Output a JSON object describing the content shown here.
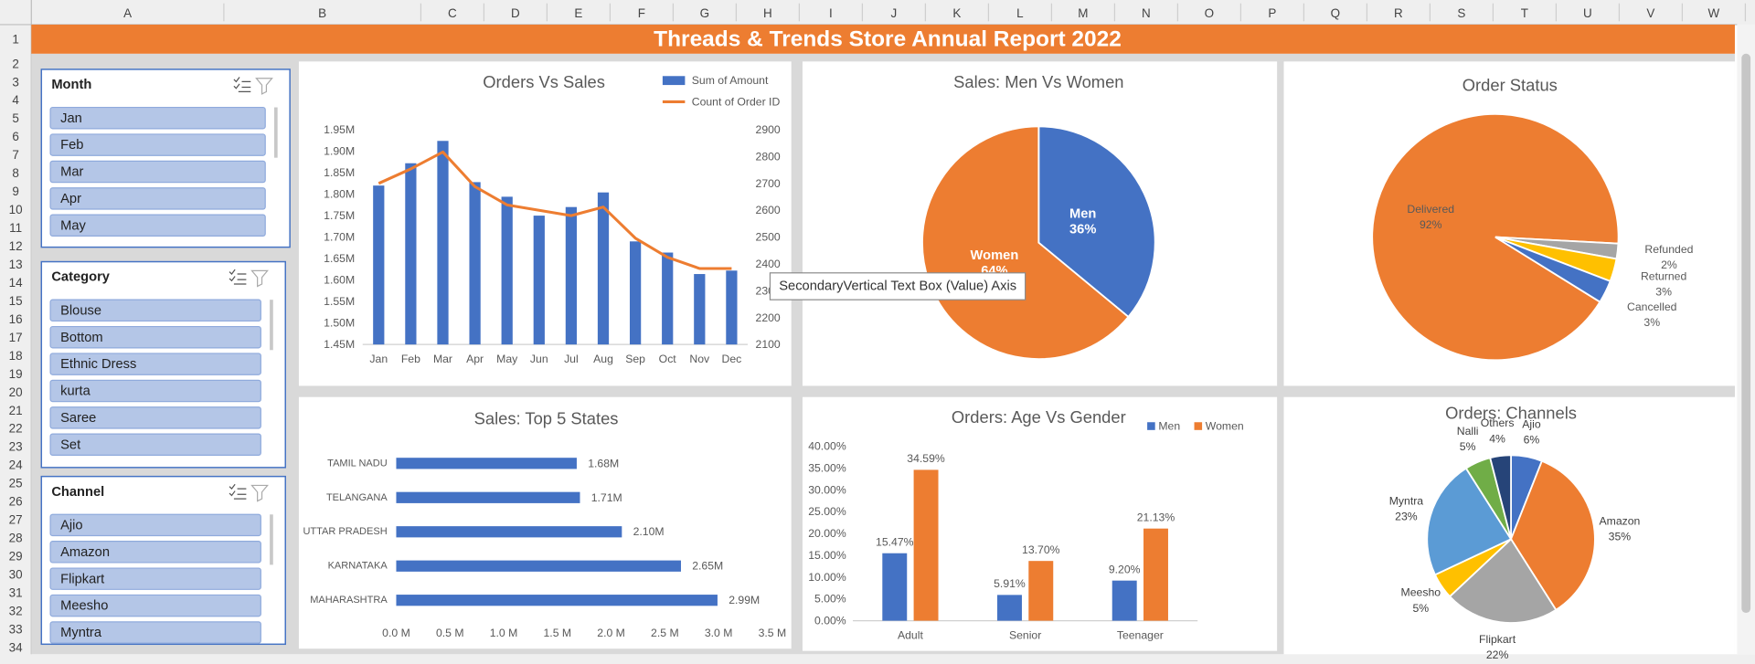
{
  "sheet": {
    "columns": [
      "A",
      "B",
      "C",
      "D",
      "E",
      "F",
      "G",
      "H",
      "I",
      "J",
      "K",
      "L",
      "M",
      "N",
      "O",
      "P",
      "Q",
      "R",
      "S",
      "T",
      "U",
      "V",
      "W"
    ],
    "rows": [
      1,
      2,
      3,
      4,
      5,
      6,
      7,
      8,
      9,
      10,
      11,
      12,
      13,
      14,
      15,
      16,
      17,
      18,
      19,
      20,
      21,
      22,
      23,
      24,
      25,
      26,
      27,
      28,
      29,
      30,
      31,
      32,
      33,
      34
    ]
  },
  "dashboard_title": "Threads & Trends Store Annual Report 2022",
  "slicers": [
    {
      "title": "Month",
      "items": [
        "Jan",
        "Feb",
        "Mar",
        "Apr",
        "May"
      ]
    },
    {
      "title": "Category",
      "items": [
        "Blouse",
        "Bottom",
        "Ethnic Dress",
        "kurta",
        "Saree",
        "Set"
      ]
    },
    {
      "title": "Channel",
      "items": [
        "Ajio",
        "Amazon",
        "Flipkart",
        "Meesho",
        "Myntra"
      ]
    }
  ],
  "tooltip": "SecondaryVertical Text Box (Value) Axis",
  "chart_data": [
    {
      "type": "combo",
      "title": "Orders Vs Sales",
      "categories": [
        "Jan",
        "Feb",
        "Mar",
        "Apr",
        "May",
        "Jun",
        "Jul",
        "Aug",
        "Sep",
        "Oct",
        "Nov",
        "Dec"
      ],
      "series": [
        {
          "name": "Sum of Amount",
          "type": "bar",
          "color": "#4472c4",
          "values": [
            1820000,
            1872000,
            1924000,
            1828000,
            1794000,
            1750000,
            1770000,
            1804000,
            1690000,
            1664000,
            1614000,
            1622000
          ]
        },
        {
          "name": "Count of Order ID",
          "type": "line",
          "axis": "y2",
          "color": "#ed7d31",
          "values": [
            2700,
            2754,
            2817,
            2688,
            2620,
            2600,
            2580,
            2612,
            2496,
            2425,
            2383,
            2383
          ]
        }
      ],
      "ylim": [
        1450000,
        1950000
      ],
      "yticks": [
        {
          "value": 1450000,
          "label": "1.45M"
        },
        {
          "value": 1500000,
          "label": "1.50M"
        },
        {
          "value": 1550000,
          "label": "1.55M"
        },
        {
          "value": 1600000,
          "label": "1.60M"
        },
        {
          "value": 1650000,
          "label": "1.65M"
        },
        {
          "value": 1700000,
          "label": "1.70M"
        },
        {
          "value": 1750000,
          "label": "1.75M"
        },
        {
          "value": 1800000,
          "label": "1.80M"
        },
        {
          "value": 1850000,
          "label": "1.85M"
        },
        {
          "value": 1900000,
          "label": "1.90M"
        },
        {
          "value": 1950000,
          "label": "1.95M"
        }
      ],
      "y2lim": [
        2100,
        2900
      ],
      "y2ticks": [
        2100,
        2200,
        2300,
        2400,
        2500,
        2600,
        2700,
        2800,
        2900
      ],
      "legend": "top-right"
    },
    {
      "type": "pie",
      "title": "Sales: Men Vs Women",
      "categories": [
        "Men",
        "Women"
      ],
      "values": [
        36,
        64
      ],
      "value_labels": [
        "36%",
        "64%"
      ],
      "colors": [
        "#4472c4",
        "#ed7d31"
      ]
    },
    {
      "type": "pie",
      "title": "Order Status",
      "categories": [
        "Delivered",
        "Refunded",
        "Returned",
        "Cancelled"
      ],
      "values": [
        92,
        2,
        3,
        3
      ],
      "value_labels": [
        "92%",
        "2%",
        "3%",
        "3%"
      ],
      "colors": [
        "#ed7d31",
        "#a5a5a5",
        "#ffc000",
        "#4472c4"
      ]
    },
    {
      "type": "barh",
      "title": "Sales: Top 5 States",
      "categories": [
        "TAMIL NADU",
        "TELANGANA",
        "UTTAR PRADESH",
        "KARNATAKA",
        "MAHARASHTRA"
      ],
      "values": [
        1680000,
        1710000,
        2100000,
        2650000,
        2990000
      ],
      "value_labels": [
        "1.68M",
        "1.71M",
        "2.10M",
        "2.65M",
        "2.99M"
      ],
      "color": "#4472c4",
      "xlim": [
        0,
        3500000
      ],
      "xticks": [
        {
          "value": 0,
          "label": "0.0 M"
        },
        {
          "value": 500000,
          "label": "0.5 M"
        },
        {
          "value": 1000000,
          "label": "1.0 M"
        },
        {
          "value": 1500000,
          "label": "1.5 M"
        },
        {
          "value": 2000000,
          "label": "2.0 M"
        },
        {
          "value": 2500000,
          "label": "2.5 M"
        },
        {
          "value": 3000000,
          "label": "3.0 M"
        },
        {
          "value": 3500000,
          "label": "3.5 M"
        }
      ]
    },
    {
      "type": "bar",
      "title": "Orders: Age Vs Gender",
      "categories": [
        "Adult",
        "Senior",
        "Teenager"
      ],
      "series": [
        {
          "name": "Men",
          "color": "#4472c4",
          "values": [
            15.47,
            5.91,
            9.2
          ],
          "value_labels": [
            "15.47%",
            "5.91%",
            "9.20%"
          ]
        },
        {
          "name": "Women",
          "color": "#ed7d31",
          "values": [
            34.59,
            13.7,
            21.13
          ],
          "value_labels": [
            "34.59%",
            "13.70%",
            "21.13%"
          ]
        }
      ],
      "ylim": [
        0,
        40
      ],
      "yticks": [
        {
          "value": 0,
          "label": "0.00%"
        },
        {
          "value": 5,
          "label": "5.00%"
        },
        {
          "value": 10,
          "label": "10.00%"
        },
        {
          "value": 15,
          "label": "15.00%"
        },
        {
          "value": 20,
          "label": "20.00%"
        },
        {
          "value": 25,
          "label": "25.00%"
        },
        {
          "value": 30,
          "label": "30.00%"
        },
        {
          "value": 35,
          "label": "35.00%"
        },
        {
          "value": 40,
          "label": "40.00%"
        }
      ],
      "legend": "top-right"
    },
    {
      "type": "pie",
      "title": "Orders: Channels",
      "categories": [
        "Ajio",
        "Amazon",
        "Flipkart",
        "Meesho",
        "Myntra",
        "Nalli",
        "Others"
      ],
      "values": [
        6,
        35,
        22,
        5,
        23,
        5,
        4
      ],
      "value_labels": [
        "6%",
        "35%",
        "22%",
        "5%",
        "23%",
        "5%",
        "4%"
      ],
      "colors": [
        "#4472c4",
        "#ed7d31",
        "#a5a5a5",
        "#ffc000",
        "#5b9bd5",
        "#70ad47",
        "#264478"
      ]
    }
  ]
}
